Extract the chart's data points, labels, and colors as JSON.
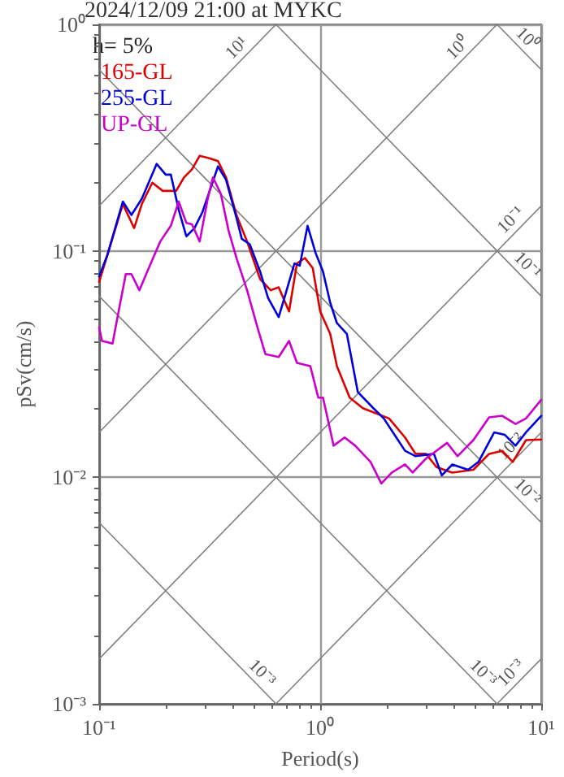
{
  "chart_data": {
    "type": "line",
    "title": "2024/12/09 21:00 at MYKC",
    "xlabel": "Period(s)",
    "ylabel": "pSv(cm/s)",
    "legend_title": "h= 5%",
    "legend": "top left",
    "log": "xy",
    "grid": true,
    "marker": "none",
    "line_style": "solid",
    "xlim": [
      0.1,
      10
    ],
    "ylim": [
      0.001,
      1
    ],
    "xticks": [
      {
        "value": 0.1,
        "label": "10⁻¹"
      },
      {
        "value": 1,
        "label": "10⁰"
      },
      {
        "value": 10,
        "label": "10¹"
      }
    ],
    "yticks": [
      {
        "value": 0.001,
        "label": "10⁻³"
      },
      {
        "value": 0.01,
        "label": "10⁻²"
      },
      {
        "value": 0.1,
        "label": "10⁻¹"
      },
      {
        "value": 1,
        "label": "10⁰"
      }
    ],
    "series": [
      {
        "color": "#808080",
        "x": [
          0.1,
          0.631
        ],
        "values": [
          0.158,
          1
        ]
      },
      {
        "color": "#808080",
        "x": [
          0.1,
          6.31
        ],
        "values": [
          0.0158,
          1
        ]
      },
      {
        "color": "#808080",
        "x": [
          0.1,
          10
        ],
        "values": [
          0.00158,
          0.158
        ]
      },
      {
        "color": "#808080",
        "x": [
          0.631,
          10
        ],
        "values": [
          0.001,
          0.0158
        ]
      },
      {
        "color": "#808080",
        "x": [
          6.31,
          10
        ],
        "values": [
          0.001,
          0.00158
        ]
      },
      {
        "color": "#808080",
        "x": [
          6.31,
          10
        ],
        "values": [
          1,
          0.631
        ]
      },
      {
        "color": "#808080",
        "x": [
          0.631,
          10
        ],
        "values": [
          1,
          0.0631
        ]
      },
      {
        "color": "#808080",
        "x": [
          0.1,
          10
        ],
        "values": [
          0.631,
          0.00631
        ]
      },
      {
        "color": "#808080",
        "x": [
          0.1,
          6.31
        ],
        "values": [
          0.0631,
          0.001
        ]
      },
      {
        "color": "#808080",
        "x": [
          0.1,
          0.631
        ],
        "values": [
          0.00631,
          0.001
        ]
      },
      {
        "name": "165-GL",
        "color": "#dd0000",
        "x": [
          0.1,
          0.109,
          0.128,
          0.144,
          0.156,
          0.174,
          0.194,
          0.223,
          0.242,
          0.263,
          0.285,
          0.318,
          0.345,
          0.375,
          0.418,
          0.467,
          0.535,
          0.597,
          0.649,
          0.723,
          0.785,
          0.853,
          0.925,
          1.0,
          1.11,
          1.19,
          1.36,
          1.56,
          2.05,
          2.42,
          2.7,
          3.01,
          3.36,
          3.96,
          4.93,
          5.81,
          6.66,
          7.43,
          8.53,
          10
        ],
        "values": [
          0.073,
          0.096,
          0.161,
          0.126,
          0.161,
          0.2,
          0.184,
          0.184,
          0.211,
          0.229,
          0.263,
          0.256,
          0.249,
          0.211,
          0.144,
          0.11,
          0.075,
          0.067,
          0.069,
          0.054,
          0.088,
          0.093,
          0.084,
          0.054,
          0.043,
          0.031,
          0.0225,
          0.0202,
          0.0182,
          0.015,
          0.0127,
          0.0127,
          0.0111,
          0.0105,
          0.0108,
          0.0127,
          0.0131,
          0.0117,
          0.0146,
          0.0147
        ]
      },
      {
        "name": "255-GL",
        "color": "#0000dd",
        "x": [
          0.1,
          0.109,
          0.128,
          0.14,
          0.156,
          0.182,
          0.2,
          0.211,
          0.229,
          0.248,
          0.27,
          0.293,
          0.345,
          0.375,
          0.418,
          0.442,
          0.48,
          0.535,
          0.581,
          0.649,
          0.705,
          0.765,
          0.808,
          0.877,
          0.953,
          1.03,
          1.11,
          1.19,
          1.32,
          1.48,
          1.74,
          1.94,
          2.17,
          2.42,
          2.7,
          3.27,
          3.55,
          3.96,
          4.67,
          5.2,
          6.13,
          6.85,
          7.65,
          8.53,
          10
        ],
        "values": [
          0.077,
          0.096,
          0.165,
          0.144,
          0.17,
          0.242,
          0.217,
          0.217,
          0.152,
          0.116,
          0.126,
          0.148,
          0.236,
          0.206,
          0.14,
          0.113,
          0.107,
          0.081,
          0.062,
          0.051,
          0.067,
          0.088,
          0.086,
          0.129,
          0.098,
          0.081,
          0.059,
          0.048,
          0.043,
          0.0238,
          0.0202,
          0.0182,
          0.0154,
          0.0131,
          0.0124,
          0.0127,
          0.0102,
          0.0114,
          0.0108,
          0.0117,
          0.0158,
          0.0154,
          0.0138,
          0.0158,
          0.0187
        ]
      },
      {
        "name": "UP-GL",
        "color": "#cc00cc",
        "x": [
          0.1,
          0.103,
          0.115,
          0.122,
          0.132,
          0.14,
          0.152,
          0.165,
          0.189,
          0.211,
          0.229,
          0.248,
          0.263,
          0.285,
          0.31,
          0.327,
          0.355,
          0.385,
          0.418,
          0.467,
          0.52,
          0.565,
          0.649,
          0.723,
          0.785,
          0.902,
          0.98,
          1.03,
          1.15,
          1.29,
          1.44,
          1.69,
          1.89,
          2.11,
          2.42,
          2.62,
          3.01,
          3.75,
          4.18,
          4.93,
          5.81,
          6.66,
          7.65,
          8.53,
          10
        ],
        "values": [
          0.046,
          0.04,
          0.039,
          0.053,
          0.079,
          0.079,
          0.067,
          0.081,
          0.11,
          0.129,
          0.165,
          0.133,
          0.131,
          0.11,
          0.17,
          0.211,
          0.179,
          0.123,
          0.093,
          0.067,
          0.046,
          0.035,
          0.034,
          0.04,
          0.032,
          0.031,
          0.0225,
          0.0225,
          0.0138,
          0.015,
          0.0138,
          0.0117,
          0.0094,
          0.0105,
          0.0114,
          0.0105,
          0.0121,
          0.0142,
          0.0124,
          0.0146,
          0.0184,
          0.0187,
          0.0172,
          0.0182,
          0.022
        ]
      }
    ],
    "annotations": [
      {
        "text": "10¹",
        "x": 0.457,
        "y": 0.724
      },
      {
        "text": "10⁰",
        "x": 4.57,
        "y": 0.724
      },
      {
        "text": "10⁰",
        "x": 7.94,
        "y": 0.794
      },
      {
        "text": "10⁻¹",
        "x": 7.94,
        "y": 0.126
      },
      {
        "text": "10⁻¹",
        "x": 7.94,
        "y": 0.0794
      },
      {
        "text": "10⁻²",
        "x": 7.94,
        "y": 0.0126
      },
      {
        "text": "10⁻²",
        "x": 7.94,
        "y": 0.00794
      },
      {
        "text": "10⁻³",
        "x": 0.501,
        "y": 0.00126
      },
      {
        "text": "10⁻³",
        "x": 5.01,
        "y": 0.00126
      },
      {
        "text": "10⁻³",
        "x": 7.94,
        "y": 0.00126
      }
    ]
  }
}
